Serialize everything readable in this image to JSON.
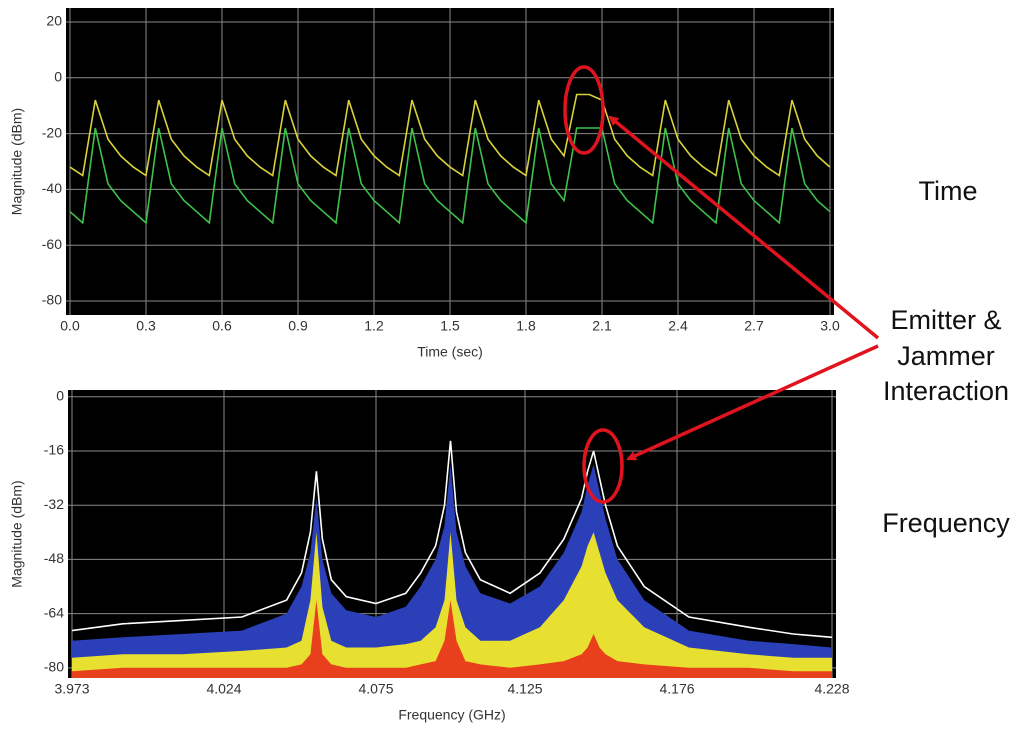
{
  "chart_data": [
    {
      "type": "line",
      "x_label": "Time (sec)",
      "y_label": "Magnitude (dBm)",
      "x": [
        0,
        0.05,
        0.1,
        0.15,
        0.2,
        0.25,
        0.3,
        0.35,
        0.4,
        0.45,
        0.5,
        0.55,
        0.6,
        0.65,
        0.7,
        0.75,
        0.8,
        0.85,
        0.9,
        0.95,
        1,
        1.05,
        1.1,
        1.15,
        1.2,
        1.25,
        1.3,
        1.35,
        1.4,
        1.45,
        1.5,
        1.55,
        1.6,
        1.65,
        1.7,
        1.75,
        1.8,
        1.85,
        1.9,
        1.95,
        2,
        2.05,
        2.1,
        2.15,
        2.2,
        2.25,
        2.3,
        2.35,
        2.4,
        2.45,
        2.5,
        2.55,
        2.6,
        2.65,
        2.7,
        2.75,
        2.8,
        2.85,
        2.9,
        2.95,
        3
      ],
      "series": [
        {
          "color": "#d8d23a",
          "style": "line",
          "values": [
            -32,
            -35,
            -8,
            -22,
            -28,
            -32,
            -35,
            -8,
            -22,
            -28,
            -32,
            -35,
            -8,
            -22,
            -28,
            -32,
            -35,
            -8,
            -22,
            -28,
            -32,
            -35,
            -8,
            -22,
            -28,
            -32,
            -35,
            -8,
            -22,
            -28,
            -32,
            -35,
            -8,
            -22,
            -28,
            -32,
            -35,
            -8,
            -22,
            -28,
            -6,
            -6,
            -8,
            -22,
            -28,
            -32,
            -35,
            -8,
            -22,
            -28,
            -32,
            -35,
            -8,
            -22,
            -28,
            -32,
            -35,
            -8,
            -22,
            -28,
            -32
          ]
        },
        {
          "color": "#3ec24a",
          "style": "line",
          "values": [
            -48,
            -52,
            -18,
            -38,
            -44,
            -48,
            -52,
            -18,
            -38,
            -44,
            -48,
            -52,
            -18,
            -38,
            -44,
            -48,
            -52,
            -18,
            -38,
            -44,
            -48,
            -52,
            -18,
            -38,
            -44,
            -48,
            -52,
            -18,
            -38,
            -44,
            -48,
            -52,
            -18,
            -38,
            -44,
            -48,
            -52,
            -18,
            -38,
            -44,
            -18,
            -18,
            -18,
            -38,
            -44,
            -48,
            -52,
            -18,
            -38,
            -44,
            -48,
            -52,
            -18,
            -38,
            -44,
            -48,
            -52,
            -18,
            -38,
            -44,
            -48
          ]
        }
      ],
      "xlim": [
        0,
        3
      ],
      "ylim": [
        -85,
        25
      ],
      "xticks": [
        {
          "value": 0,
          "label": "0.0"
        },
        0.3,
        0.6,
        0.9,
        1.2,
        1.5,
        1.8,
        2.1,
        2.4,
        2.7,
        {
          "value": 3,
          "label": "3.0"
        }
      ],
      "yticks": [
        20,
        0,
        -20,
        -40,
        -60,
        -80
      ],
      "grid": true
    },
    {
      "type": "line",
      "x_label": "Frequency (GHz)",
      "y_label": "Magnitude (dBm)",
      "x": [
        3.973,
        3.99,
        4.01,
        4.03,
        4.045,
        4.05,
        4.053,
        4.055,
        4.057,
        4.06,
        4.065,
        4.075,
        4.085,
        4.09,
        4.095,
        4.098,
        4.1,
        4.102,
        4.105,
        4.11,
        4.12,
        4.13,
        4.138,
        4.144,
        4.146,
        4.148,
        4.15,
        4.152,
        4.156,
        4.165,
        4.18,
        4.2,
        4.215,
        4.228
      ],
      "series": [
        {
          "color": "#2a3fb8",
          "style": "area",
          "values": [
            -72,
            -71,
            -70,
            -69,
            -64,
            -56,
            -46,
            -30,
            -48,
            -58,
            -63,
            -65,
            -62,
            -56,
            -48,
            -38,
            -20,
            -40,
            -50,
            -58,
            -61,
            -56,
            -46,
            -34,
            -26,
            -20,
            -28,
            -36,
            -48,
            -60,
            -69,
            -72,
            -73,
            -74
          ]
        },
        {
          "color": "#e8e030",
          "style": "area",
          "values": [
            -77,
            -76,
            -76,
            -75,
            -74,
            -72,
            -60,
            -40,
            -62,
            -72,
            -74,
            -74,
            -73,
            -72,
            -68,
            -60,
            -40,
            -60,
            -68,
            -72,
            -72,
            -68,
            -60,
            -50,
            -44,
            -40,
            -46,
            -52,
            -60,
            -68,
            -74,
            -76,
            -77,
            -77
          ]
        },
        {
          "color": "#e8401c",
          "style": "area",
          "values": [
            -81,
            -80,
            -80,
            -80,
            -80,
            -79,
            -76,
            -60,
            -76,
            -79,
            -80,
            -80,
            -80,
            -79,
            -78,
            -72,
            -60,
            -72,
            -78,
            -79,
            -80,
            -79,
            -78,
            -76,
            -74,
            -70,
            -74,
            -76,
            -78,
            -79,
            -80,
            -80,
            -81,
            -81
          ]
        },
        {
          "color": "#ffffff",
          "style": "line",
          "values": [
            -69,
            -67,
            -66,
            -65,
            -60,
            -52,
            -40,
            -22,
            -42,
            -54,
            -59,
            -61,
            -58,
            -52,
            -44,
            -32,
            -13,
            -34,
            -46,
            -54,
            -58,
            -52,
            -42,
            -30,
            -22,
            -16,
            -24,
            -32,
            -44,
            -56,
            -65,
            -68,
            -70,
            -71
          ]
        }
      ],
      "xlim": [
        3.973,
        4.228
      ],
      "ylim": [
        -83,
        2
      ],
      "xticks": [
        3.973,
        4.024,
        4.075,
        4.125,
        4.176,
        4.228
      ],
      "yticks": [
        0,
        -16,
        -32,
        -48,
        -64,
        -80
      ],
      "grid": true
    }
  ],
  "labels": {
    "time": "Time",
    "interaction": [
      "Emitter &",
      "Jammer",
      "Interaction"
    ],
    "frequency": "Frequency"
  }
}
